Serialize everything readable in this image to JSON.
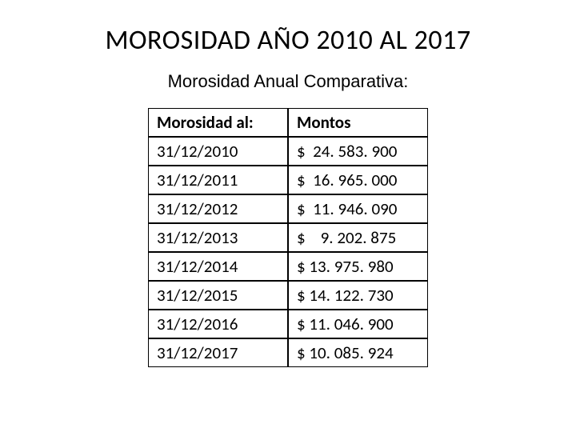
{
  "title": "MOROSIDAD AÑO 2010 AL 2017",
  "subtitle": "Morosidad Anual Comparativa:",
  "table": {
    "headers": {
      "date": "Morosidad al:",
      "amount": "Montos"
    },
    "rows": [
      {
        "date": "31/12/2010",
        "amount": "$  24. 583. 900"
      },
      {
        "date": "31/12/2011",
        "amount": "$  16. 965. 000"
      },
      {
        "date": "31/12/2012",
        "amount": "$  11. 946. 090"
      },
      {
        "date": "31/12/2013",
        "amount": "$    9. 202. 875"
      },
      {
        "date": "31/12/2014",
        "amount": "$ 13. 975. 980"
      },
      {
        "date": "31/12/2015",
        "amount": "$ 14. 122. 730"
      },
      {
        "date": "31/12/2016",
        "amount": "$ 11. 046. 900"
      },
      {
        "date": "31/12/2017",
        "amount": "$ 10. 085. 924"
      }
    ]
  },
  "styling": {
    "title_fontsize": 34,
    "subtitle_fontsize": 22,
    "cell_fontsize": 21,
    "background_color": "#ffffff",
    "text_color": "#000000",
    "border_color": "#000000",
    "col_date_width": 175,
    "col_amount_width": 175
  }
}
